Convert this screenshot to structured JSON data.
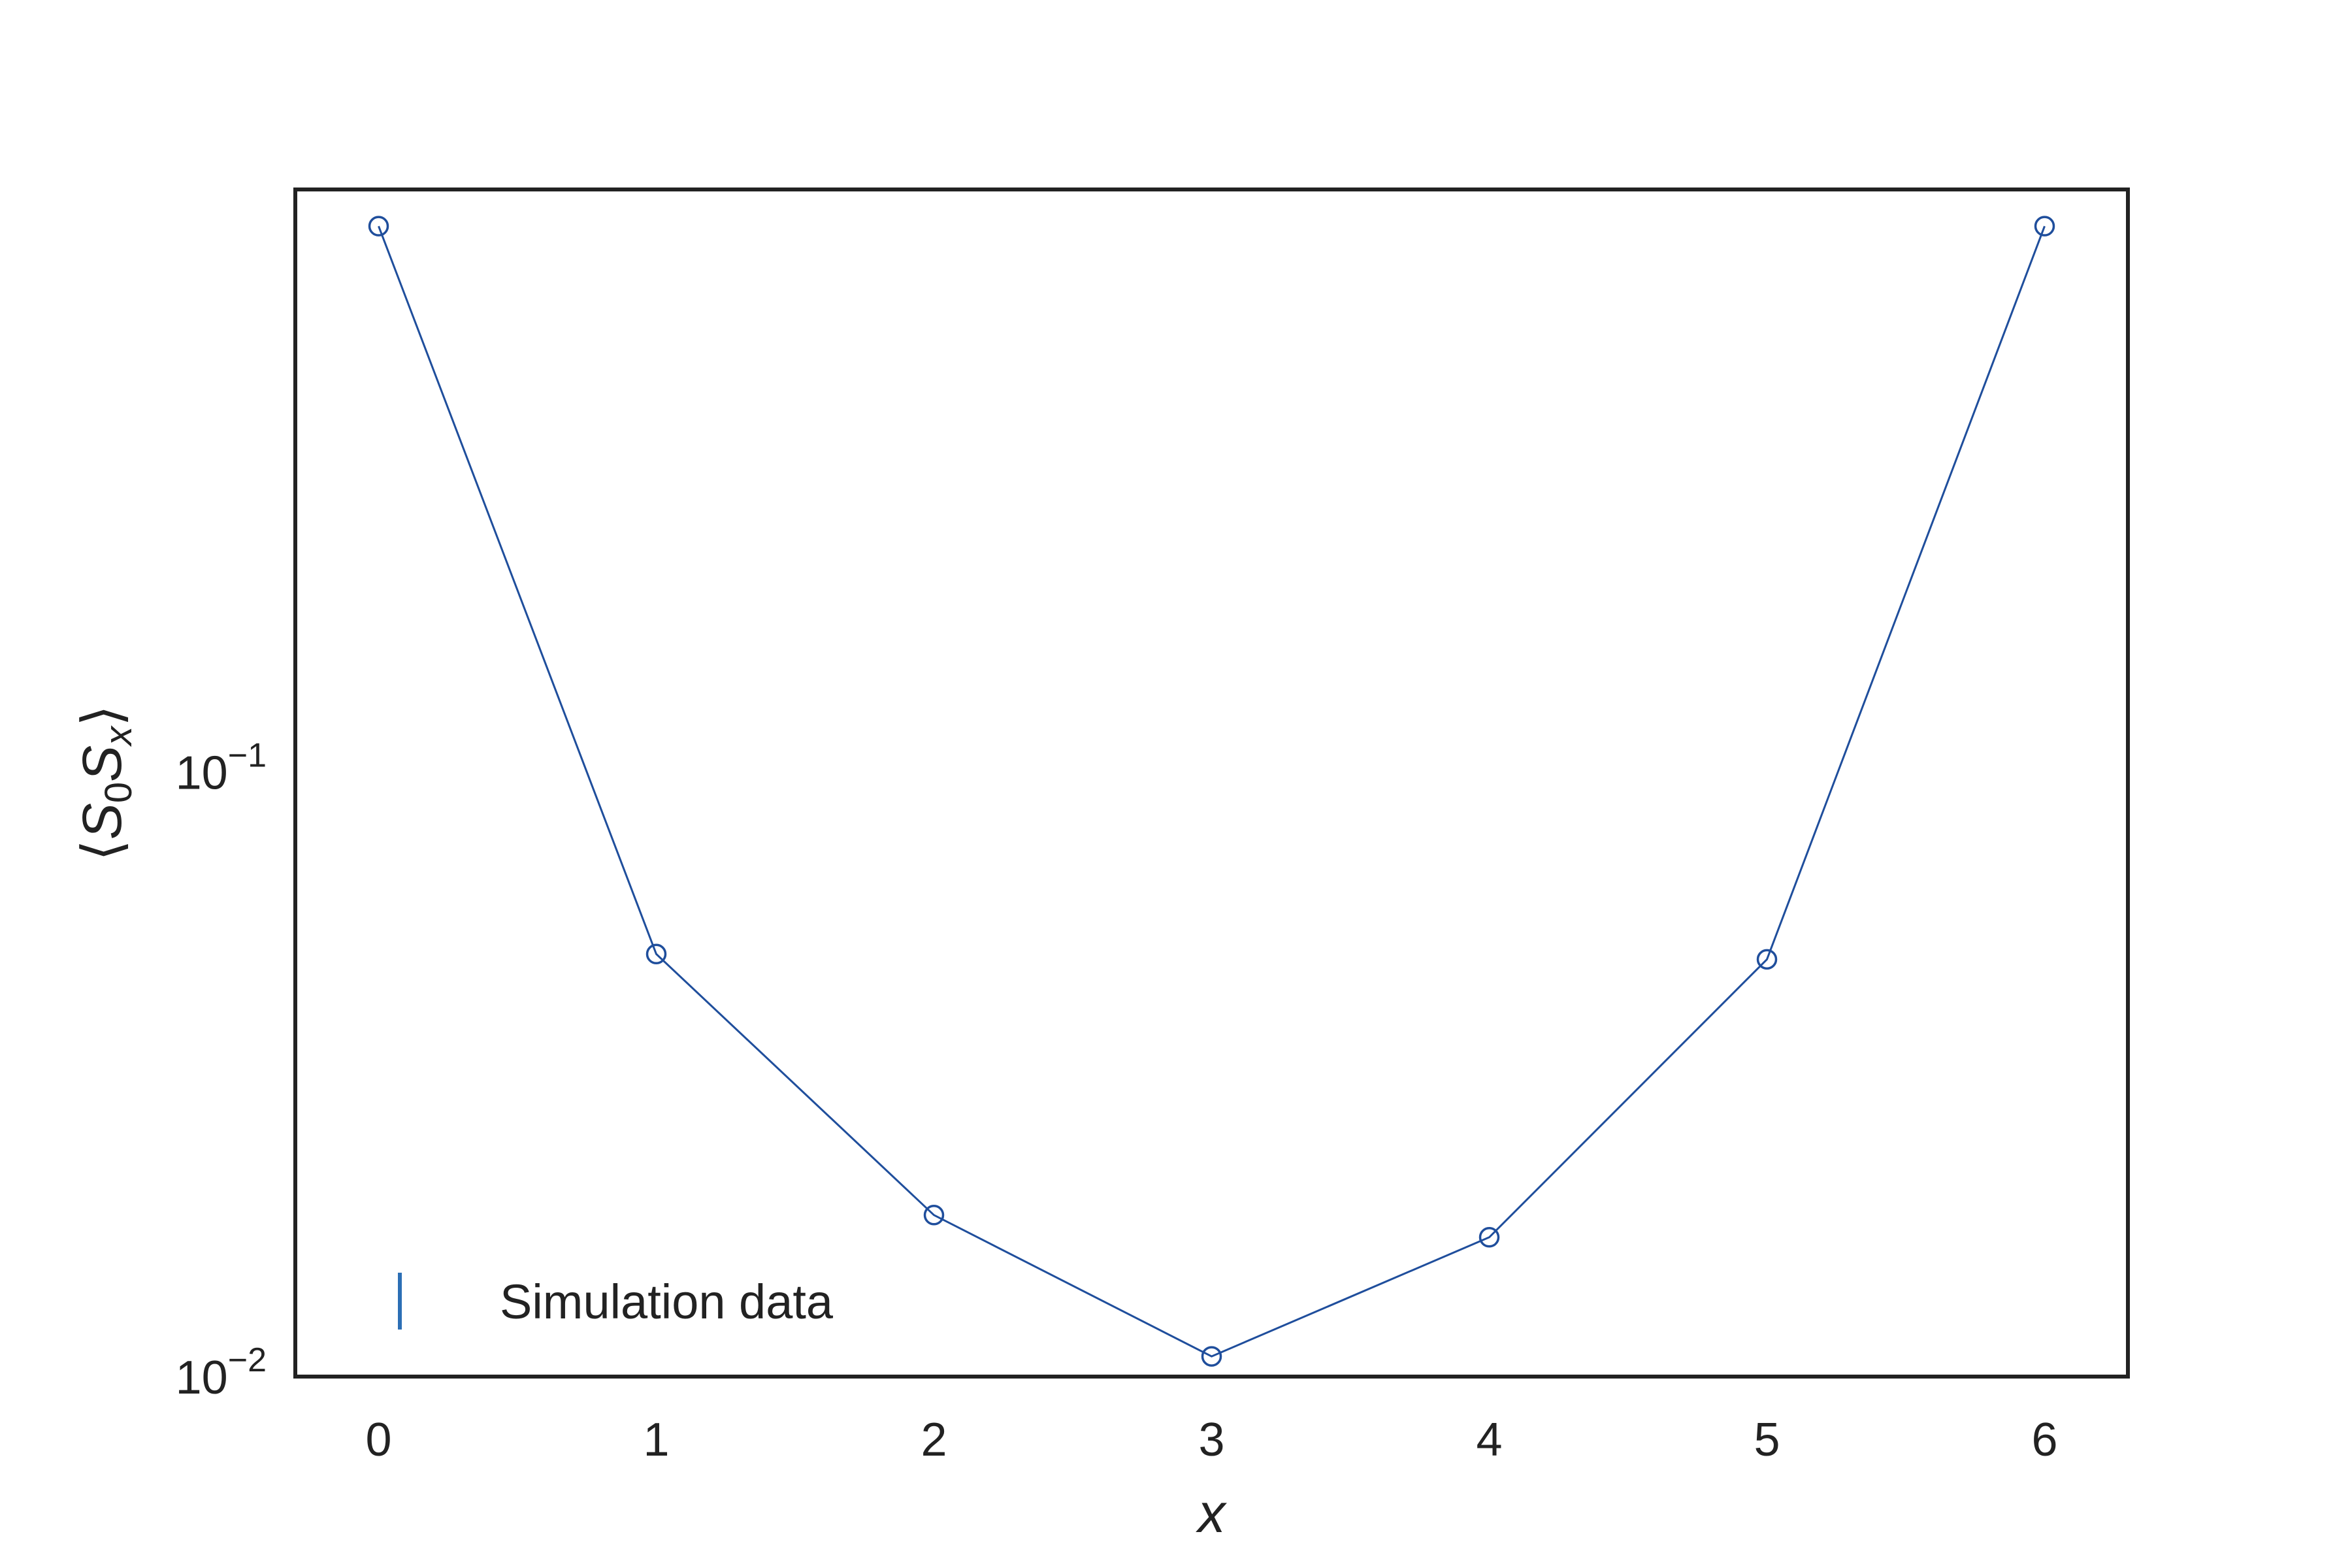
{
  "chart_data": {
    "type": "line",
    "title": "",
    "xlabel": "x",
    "ylabel": "⟨S₀Sₓ⟩",
    "ylabel_parts": {
      "open": "⟨",
      "s1": "S",
      "sub1": "0",
      "s2": "S",
      "sub2": "x",
      "close": "⟩"
    },
    "x": [
      0,
      1,
      2,
      3,
      4,
      5,
      6
    ],
    "xlim": [
      -0.3,
      6.3
    ],
    "ylim": [
      0.01,
      0.92
    ],
    "yscale": "log",
    "grid": false,
    "x_ticks": [
      {
        "value": 0,
        "label": "0"
      },
      {
        "value": 1,
        "label": "1"
      },
      {
        "value": 2,
        "label": "2"
      },
      {
        "value": 3,
        "label": "3"
      },
      {
        "value": 4,
        "label": "4"
      },
      {
        "value": 5,
        "label": "5"
      },
      {
        "value": 6,
        "label": "6"
      }
    ],
    "y_ticks": [
      {
        "value": 0.01,
        "base": "10",
        "exponent": "−2"
      },
      {
        "value": 0.1,
        "base": "10",
        "exponent": "−1"
      }
    ],
    "series": [
      {
        "name": "Simulation data",
        "color": "#1f4e9c",
        "marker": "open-circle",
        "values": [
          0.8,
          0.05,
          0.0185,
          0.0108,
          0.017,
          0.049,
          0.8
        ]
      }
    ],
    "legend": {
      "position": "lower-left",
      "entries": [
        "Simulation data"
      ],
      "handle_color": "#2c6fb5"
    }
  }
}
